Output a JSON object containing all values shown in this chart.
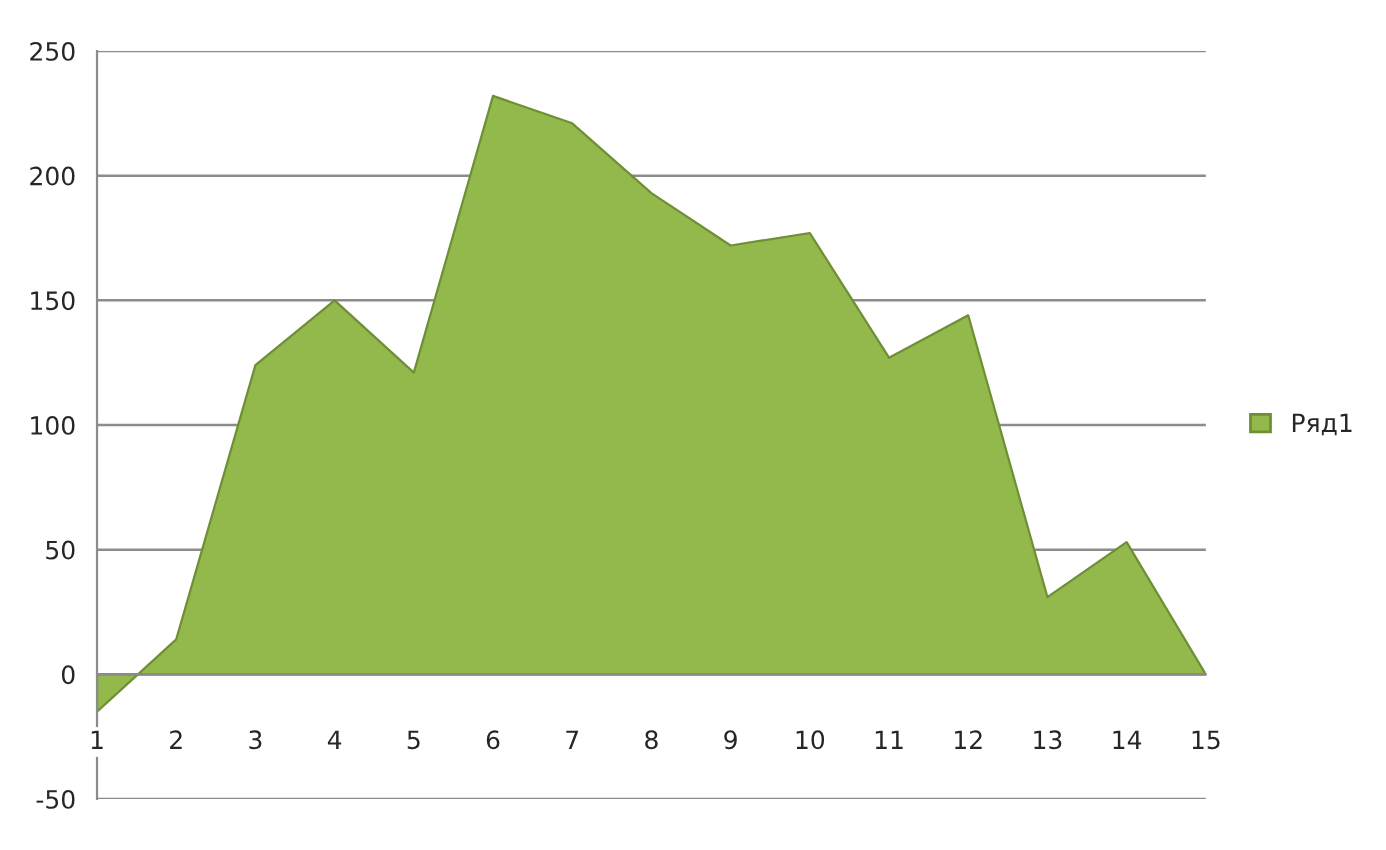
{
  "chart_data": {
    "type": "area",
    "categories": [
      "1",
      "2",
      "3",
      "4",
      "5",
      "6",
      "7",
      "8",
      "9",
      "10",
      "11",
      "12",
      "13",
      "14",
      "15"
    ],
    "series": [
      {
        "name": "Ряд1",
        "color": "#93b84c",
        "values": [
          -15,
          14,
          124,
          150,
          121,
          232,
          221,
          193,
          172,
          177,
          127,
          144,
          31,
          53,
          0
        ]
      }
    ],
    "ylim": [
      -50,
      250
    ],
    "yticks": [
      -50,
      0,
      50,
      100,
      150,
      200,
      250
    ],
    "grid": "y",
    "legend": "right"
  }
}
